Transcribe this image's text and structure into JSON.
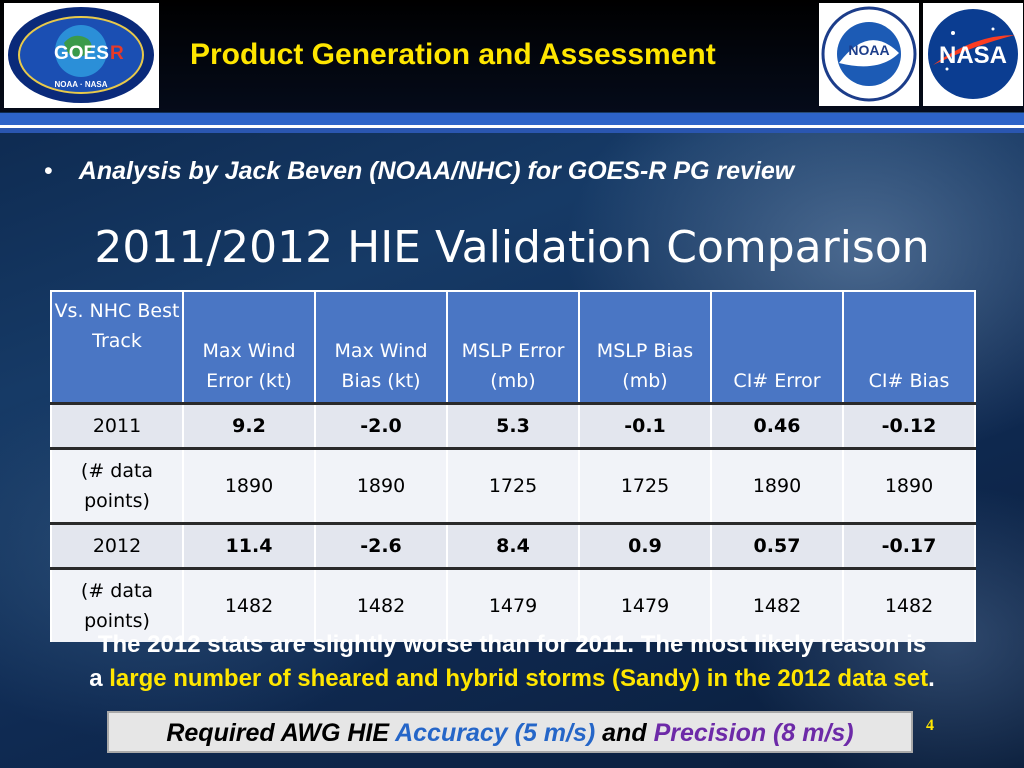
{
  "header": {
    "title": "Product Generation and Assessment",
    "goes_logo": {
      "text_main": "GOES",
      "text_r": "R",
      "footer": "NOAA · NASA"
    },
    "noaa_logo": {
      "text": "NOAA"
    },
    "nasa_logo": {
      "text": "NASA"
    }
  },
  "bullet": {
    "symbol": "•",
    "text": "Analysis by Jack Beven (NOAA/NHC) for GOES-R PG review"
  },
  "table": {
    "title": "2011/2012 HIE Validation Comparison",
    "headers": [
      "Vs. NHC Best Track",
      "Max Wind Error (kt)",
      "Max Wind Bias (kt)",
      "MSLP Error (mb)",
      "MSLP Bias (mb)",
      "CI# Error",
      "CI# Bias"
    ],
    "rows": [
      {
        "label": "2011",
        "values": [
          "9.2",
          "-2.0",
          "5.3",
          "-0.1",
          "0.46",
          "-0.12"
        ]
      },
      {
        "label": "(# data points)",
        "values": [
          "1890",
          "1890",
          "1725",
          "1725",
          "1890",
          "1890"
        ]
      },
      {
        "label": "2012",
        "values": [
          "11.4",
          "-2.6",
          "8.4",
          "0.9",
          "0.57",
          "-0.17"
        ]
      },
      {
        "label": "(# data points)",
        "values": [
          "1482",
          "1482",
          "1479",
          "1479",
          "1482",
          "1482"
        ]
      }
    ]
  },
  "conclusion": {
    "line1": "The 2012 stats are slightly worse than for 2011.  The most likely reason is",
    "line2_prefix": "a",
    "line2_highlight": "large number of sheared and hybrid storms (Sandy) in the 2012 data set",
    "line2_suffix": "."
  },
  "requirement": {
    "prefix": "Required AWG HIE",
    "accuracy": "Accuracy (5 m/s)",
    "and": "and",
    "precision": "Precision (8 m/s)"
  },
  "page_number": "4",
  "colors": {
    "title_yellow": "#ffe600",
    "header_blue": "#4a76c4",
    "accuracy_blue": "#2566c8",
    "precision_purple": "#6d2aa8"
  }
}
